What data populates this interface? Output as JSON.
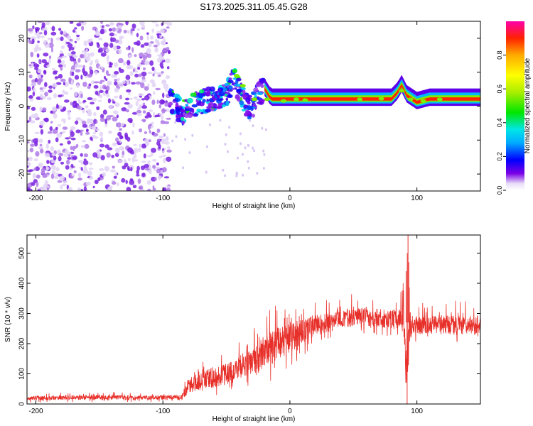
{
  "title": "S173.2025.311.05.45.G28",
  "chart_data": [
    {
      "type": "heatmap",
      "title": "S173.2025.311.05.45.G28",
      "xlabel": "Height of straight line (km)",
      "ylabel": "Frequency (Hz)",
      "xlim": [
        -207,
        150
      ],
      "ylim": [
        -25,
        25
      ],
      "xticks": [
        -200,
        -100,
        0,
        100
      ],
      "yticks": [
        -20,
        -10,
        0,
        10,
        20
      ],
      "colorbar": {
        "label": "Normalized spectral amplitude",
        "range": [
          0,
          1
        ],
        "ticks": [
          0.0,
          0.2,
          0.4,
          0.6,
          0.8
        ],
        "tick_labels": [
          "0.0",
          "0.2",
          "0.4",
          "0.6",
          "0.8"
        ]
      },
      "regions": [
        {
          "name": "noise",
          "x_range": [
            -207,
            -95
          ],
          "freq_range": [
            -25,
            25
          ],
          "amplitude": 0.05
        },
        {
          "name": "scattered signal",
          "x_range": [
            -95,
            -20
          ],
          "freq_range": [
            -5,
            10
          ],
          "amplitude": 0.25
        },
        {
          "name": "coherent tone",
          "x_range": [
            -20,
            150
          ],
          "freq_range": [
            1,
            3
          ],
          "amplitude": 0.9
        }
      ],
      "ridge": {
        "x": [
          -95,
          -85,
          -80,
          -70,
          -60,
          -50,
          -45,
          -40,
          -35,
          -30,
          -25,
          -20,
          -15,
          -10,
          0,
          10,
          20,
          40,
          60,
          80,
          85,
          88,
          92,
          100,
          110,
          120,
          150
        ],
        "freq": [
          2,
          -2,
          0,
          1,
          2,
          3,
          8,
          5,
          1,
          -1,
          4,
          5,
          2,
          2,
          2,
          2,
          2,
          2,
          2,
          2,
          4,
          6,
          3,
          1,
          2,
          2,
          2
        ]
      }
    },
    {
      "type": "line",
      "xlabel": "Height of straight line (km)",
      "ylabel": "SNR (10 * v/v)",
      "xlim": [
        -207,
        150
      ],
      "ylim": [
        0,
        560
      ],
      "xticks": [
        -200,
        -100,
        0,
        100
      ],
      "yticks": [
        0,
        100,
        200,
        300,
        400,
        500
      ],
      "series": [
        {
          "name": "SNR",
          "color": "#e8302a",
          "x": [
            -207,
            -180,
            -150,
            -120,
            -100,
            -85,
            -80,
            -70,
            -60,
            -50,
            -40,
            -30,
            -20,
            -10,
            0,
            10,
            20,
            30,
            40,
            50,
            60,
            70,
            80,
            85,
            90,
            92,
            94,
            96,
            100,
            110,
            120,
            130,
            140,
            150
          ],
          "y": [
            20,
            20,
            22,
            20,
            22,
            22,
            60,
            80,
            90,
            100,
            120,
            140,
            170,
            200,
            220,
            240,
            260,
            270,
            280,
            285,
            290,
            285,
            280,
            280,
            270,
            30,
            280,
            260,
            260,
            260,
            265,
            260,
            260,
            265
          ]
        }
      ],
      "envelope": {
        "x": [
          -207,
          -150,
          -100,
          -85,
          -80,
          -70,
          -60,
          -50,
          -40,
          -30,
          -20,
          -10,
          0,
          10,
          20,
          30,
          40,
          50,
          60,
          70,
          80,
          85,
          90,
          92,
          94,
          96,
          100,
          110,
          120,
          130,
          140,
          150
        ],
        "min": [
          5,
          5,
          5,
          5,
          10,
          15,
          20,
          20,
          40,
          50,
          60,
          90,
          110,
          150,
          190,
          210,
          220,
          230,
          225,
          220,
          215,
          210,
          190,
          0,
          80,
          200,
          200,
          200,
          205,
          205,
          205,
          210
        ],
        "max": [
          35,
          40,
          38,
          40,
          120,
          150,
          170,
          190,
          220,
          260,
          310,
          330,
          340,
          330,
          340,
          350,
          360,
          365,
          360,
          355,
          350,
          360,
          440,
          560,
          470,
          350,
          340,
          330,
          340,
          345,
          345,
          340
        ]
      }
    }
  ]
}
